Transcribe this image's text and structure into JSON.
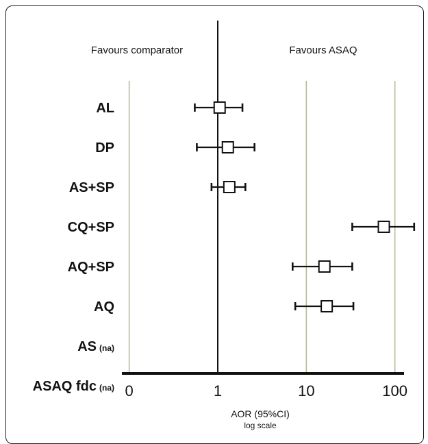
{
  "chart_data": {
    "type": "forest",
    "header_left": "Favours comparator",
    "header_right": "Favours ASAQ",
    "xlabel": "AOR (95%CI)",
    "xlabel_sub": "log scale",
    "x_ticks": [
      "0",
      "1",
      "10",
      "100"
    ],
    "reference_line": 1,
    "rows": [
      {
        "label": "AL",
        "note": "",
        "aor": 1.05,
        "ci_low": 0.55,
        "ci_high": 1.9
      },
      {
        "label": "DP",
        "note": "",
        "aor": 1.3,
        "ci_low": 0.58,
        "ci_high": 2.6
      },
      {
        "label": "AS+SP",
        "note": "",
        "aor": 1.35,
        "ci_low": 0.85,
        "ci_high": 2.05
      },
      {
        "label": "CQ+SP",
        "note": "",
        "aor": 75,
        "ci_low": 33,
        "ci_high": 165
      },
      {
        "label": "AQ+SP",
        "note": "",
        "aor": 16,
        "ci_low": 7,
        "ci_high": 33
      },
      {
        "label": "AQ",
        "note": "",
        "aor": 17,
        "ci_low": 7.5,
        "ci_high": 34
      },
      {
        "label": "AS",
        "note": "(na)",
        "aor": null,
        "ci_low": null,
        "ci_high": null
      },
      {
        "label": "ASAQ fdc",
        "note": "(na)",
        "aor": null,
        "ci_low": null,
        "ci_high": null
      }
    ],
    "grid_lines_at": [
      0.1,
      10,
      100
    ],
    "colors": {
      "grid": "#b8b89a",
      "ink": "#111111"
    }
  }
}
